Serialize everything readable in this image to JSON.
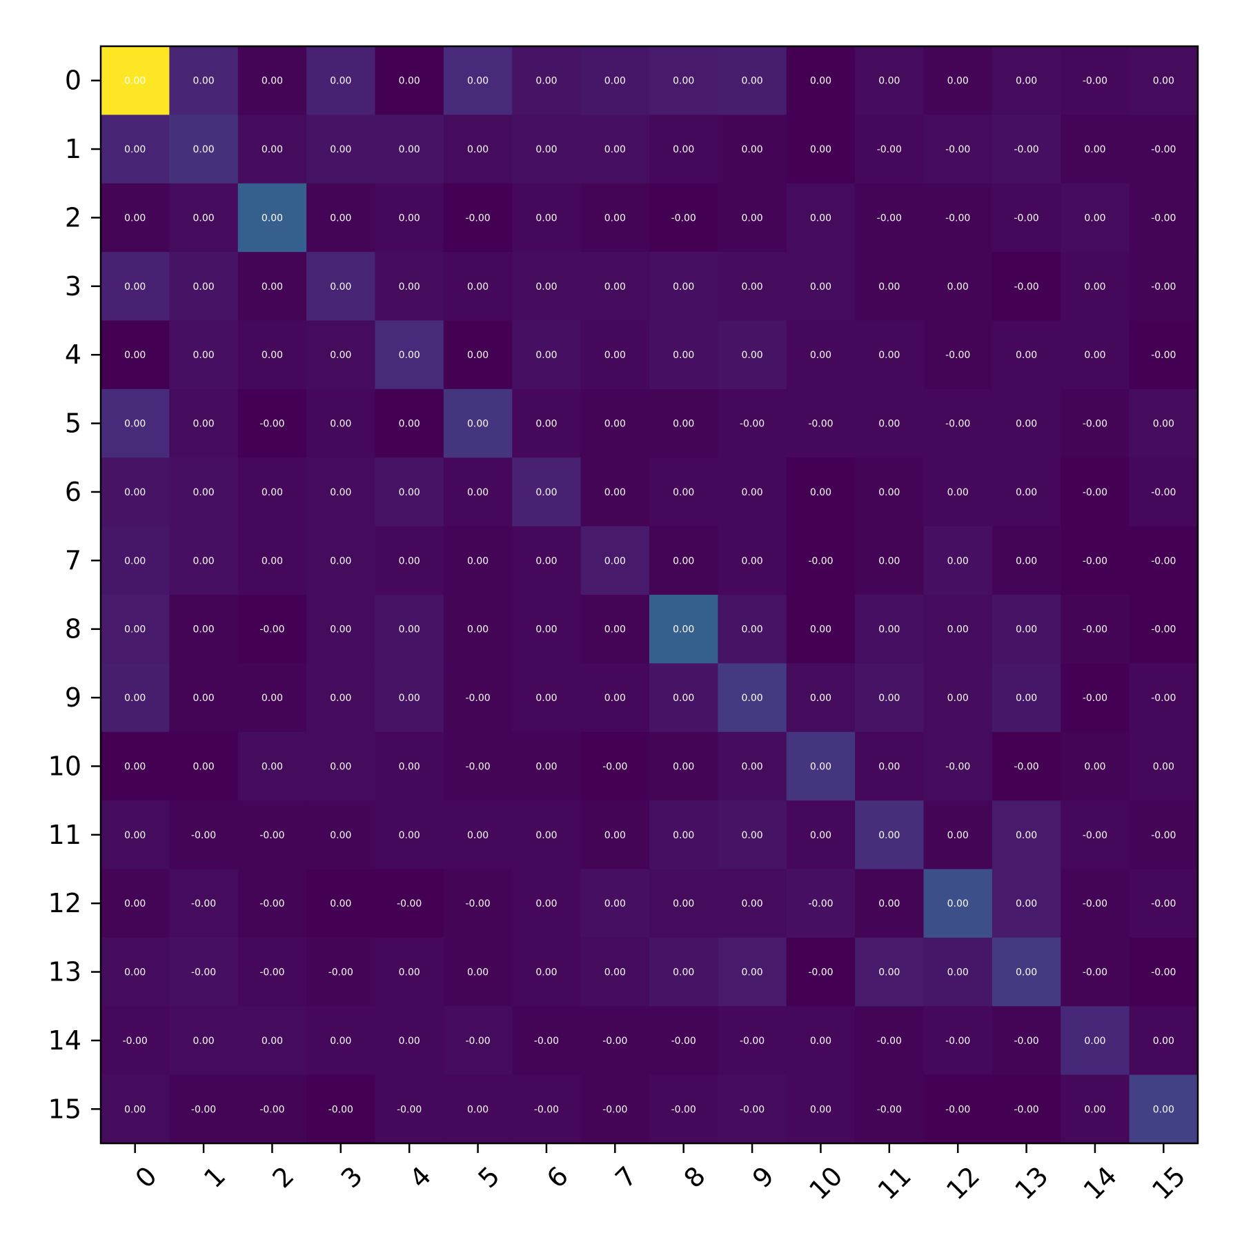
{
  "chart_data": {
    "type": "heatmap",
    "title": "",
    "xlabel": "",
    "ylabel": "",
    "colormap": "viridis",
    "x_ticks": [
      "0",
      "1",
      "2",
      "3",
      "4",
      "5",
      "6",
      "7",
      "8",
      "9",
      "10",
      "11",
      "12",
      "13",
      "14",
      "15"
    ],
    "y_ticks": [
      "0",
      "1",
      "2",
      "3",
      "4",
      "5",
      "6",
      "7",
      "8",
      "9",
      "10",
      "11",
      "12",
      "13",
      "14",
      "15"
    ],
    "intensity": [
      [
        1.0,
        0.1,
        0.01,
        0.09,
        0.0,
        0.12,
        0.05,
        0.06,
        0.07,
        0.08,
        0.0,
        0.03,
        0.01,
        0.03,
        0.02,
        0.03
      ],
      [
        0.1,
        0.14,
        0.03,
        0.05,
        0.05,
        0.03,
        0.04,
        0.04,
        0.02,
        0.01,
        0.0,
        0.02,
        0.03,
        0.04,
        0.01,
        0.01
      ],
      [
        0.01,
        0.03,
        0.3,
        0.01,
        0.02,
        0.0,
        0.02,
        0.01,
        0.0,
        0.01,
        0.03,
        0.01,
        0.01,
        0.02,
        0.03,
        0.01
      ],
      [
        0.09,
        0.05,
        0.01,
        0.1,
        0.03,
        0.02,
        0.03,
        0.03,
        0.04,
        0.03,
        0.03,
        0.01,
        0.01,
        0.0,
        0.02,
        0.01
      ],
      [
        0.0,
        0.04,
        0.02,
        0.03,
        0.12,
        0.0,
        0.04,
        0.02,
        0.04,
        0.05,
        0.02,
        0.02,
        0.01,
        0.02,
        0.02,
        0.0
      ],
      [
        0.12,
        0.03,
        0.0,
        0.02,
        0.0,
        0.15,
        0.02,
        0.01,
        0.01,
        0.02,
        0.02,
        0.02,
        0.02,
        0.02,
        0.01,
        0.03
      ],
      [
        0.05,
        0.04,
        0.02,
        0.03,
        0.05,
        0.02,
        0.09,
        0.01,
        0.02,
        0.02,
        0.0,
        0.01,
        0.02,
        0.02,
        0.0,
        0.02
      ],
      [
        0.06,
        0.04,
        0.02,
        0.03,
        0.02,
        0.01,
        0.02,
        0.07,
        0.01,
        0.02,
        0.0,
        0.01,
        0.04,
        0.01,
        0.0,
        0.0
      ],
      [
        0.07,
        0.01,
        0.0,
        0.03,
        0.05,
        0.01,
        0.02,
        0.01,
        0.3,
        0.05,
        0.0,
        0.04,
        0.03,
        0.05,
        0.01,
        0.0
      ],
      [
        0.08,
        0.01,
        0.01,
        0.03,
        0.05,
        0.01,
        0.02,
        0.02,
        0.05,
        0.17,
        0.03,
        0.05,
        0.03,
        0.06,
        0.0,
        0.02
      ],
      [
        0.0,
        0.0,
        0.03,
        0.03,
        0.02,
        0.01,
        0.01,
        0.0,
        0.01,
        0.03,
        0.15,
        0.02,
        0.03,
        0.0,
        0.01,
        0.02
      ],
      [
        0.03,
        0.01,
        0.01,
        0.01,
        0.02,
        0.02,
        0.02,
        0.01,
        0.04,
        0.05,
        0.02,
        0.13,
        0.01,
        0.07,
        0.02,
        0.01
      ],
      [
        0.01,
        0.03,
        0.01,
        0.0,
        0.0,
        0.01,
        0.02,
        0.04,
        0.03,
        0.03,
        0.04,
        0.01,
        0.24,
        0.07,
        0.01,
        0.02
      ],
      [
        0.03,
        0.04,
        0.02,
        0.01,
        0.02,
        0.01,
        0.02,
        0.03,
        0.05,
        0.07,
        0.0,
        0.07,
        0.06,
        0.17,
        0.01,
        0.0
      ],
      [
        0.02,
        0.03,
        0.03,
        0.02,
        0.02,
        0.03,
        0.01,
        0.01,
        0.01,
        0.02,
        0.02,
        0.01,
        0.02,
        0.01,
        0.11,
        0.02
      ],
      [
        0.03,
        0.01,
        0.01,
        0.0,
        0.02,
        0.02,
        0.02,
        0.01,
        0.02,
        0.03,
        0.02,
        0.01,
        0.0,
        0.0,
        0.02,
        0.19
      ]
    ],
    "cell_text": [
      [
        "0.00",
        "0.00",
        "0.00",
        "0.00",
        "0.00",
        "0.00",
        "0.00",
        "0.00",
        "0.00",
        "0.00",
        "0.00",
        "0.00",
        "0.00",
        "0.00",
        "-0.00",
        "0.00"
      ],
      [
        "0.00",
        "0.00",
        "0.00",
        "0.00",
        "0.00",
        "0.00",
        "0.00",
        "0.00",
        "0.00",
        "0.00",
        "0.00",
        "-0.00",
        "-0.00",
        "-0.00",
        "0.00",
        "-0.00"
      ],
      [
        "0.00",
        "0.00",
        "0.00",
        "0.00",
        "0.00",
        "-0.00",
        "0.00",
        "0.00",
        "-0.00",
        "0.00",
        "0.00",
        "-0.00",
        "-0.00",
        "-0.00",
        "0.00",
        "-0.00"
      ],
      [
        "0.00",
        "0.00",
        "0.00",
        "0.00",
        "0.00",
        "0.00",
        "0.00",
        "0.00",
        "0.00",
        "0.00",
        "0.00",
        "0.00",
        "0.00",
        "-0.00",
        "0.00",
        "-0.00"
      ],
      [
        "0.00",
        "0.00",
        "0.00",
        "0.00",
        "0.00",
        "0.00",
        "0.00",
        "0.00",
        "0.00",
        "0.00",
        "0.00",
        "0.00",
        "-0.00",
        "0.00",
        "0.00",
        "-0.00"
      ],
      [
        "0.00",
        "0.00",
        "-0.00",
        "0.00",
        "0.00",
        "0.00",
        "0.00",
        "0.00",
        "0.00",
        "-0.00",
        "-0.00",
        "0.00",
        "-0.00",
        "0.00",
        "-0.00",
        "0.00"
      ],
      [
        "0.00",
        "0.00",
        "0.00",
        "0.00",
        "0.00",
        "0.00",
        "0.00",
        "0.00",
        "0.00",
        "0.00",
        "0.00",
        "0.00",
        "0.00",
        "0.00",
        "-0.00",
        "-0.00"
      ],
      [
        "0.00",
        "0.00",
        "0.00",
        "0.00",
        "0.00",
        "0.00",
        "0.00",
        "0.00",
        "0.00",
        "0.00",
        "-0.00",
        "0.00",
        "0.00",
        "0.00",
        "-0.00",
        "-0.00"
      ],
      [
        "0.00",
        "0.00",
        "-0.00",
        "0.00",
        "0.00",
        "0.00",
        "0.00",
        "0.00",
        "0.00",
        "0.00",
        "0.00",
        "0.00",
        "0.00",
        "0.00",
        "-0.00",
        "-0.00"
      ],
      [
        "0.00",
        "0.00",
        "0.00",
        "0.00",
        "0.00",
        "-0.00",
        "0.00",
        "0.00",
        "0.00",
        "0.00",
        "0.00",
        "0.00",
        "0.00",
        "0.00",
        "-0.00",
        "-0.00"
      ],
      [
        "0.00",
        "0.00",
        "0.00",
        "0.00",
        "0.00",
        "-0.00",
        "0.00",
        "-0.00",
        "0.00",
        "0.00",
        "0.00",
        "0.00",
        "-0.00",
        "-0.00",
        "0.00",
        "0.00"
      ],
      [
        "0.00",
        "-0.00",
        "-0.00",
        "0.00",
        "0.00",
        "0.00",
        "0.00",
        "0.00",
        "0.00",
        "0.00",
        "0.00",
        "0.00",
        "0.00",
        "0.00",
        "-0.00",
        "-0.00"
      ],
      [
        "0.00",
        "-0.00",
        "-0.00",
        "0.00",
        "-0.00",
        "-0.00",
        "0.00",
        "0.00",
        "0.00",
        "0.00",
        "-0.00",
        "0.00",
        "0.00",
        "0.00",
        "-0.00",
        "-0.00"
      ],
      [
        "0.00",
        "-0.00",
        "-0.00",
        "-0.00",
        "0.00",
        "0.00",
        "0.00",
        "0.00",
        "0.00",
        "0.00",
        "-0.00",
        "0.00",
        "0.00",
        "0.00",
        "-0.00",
        "-0.00"
      ],
      [
        "-0.00",
        "0.00",
        "0.00",
        "0.00",
        "0.00",
        "-0.00",
        "-0.00",
        "-0.00",
        "-0.00",
        "-0.00",
        "0.00",
        "-0.00",
        "-0.00",
        "-0.00",
        "0.00",
        "0.00"
      ],
      [
        "0.00",
        "-0.00",
        "-0.00",
        "-0.00",
        "-0.00",
        "0.00",
        "-0.00",
        "-0.00",
        "-0.00",
        "-0.00",
        "0.00",
        "-0.00",
        "-0.00",
        "-0.00",
        "0.00",
        "0.00"
      ]
    ]
  }
}
